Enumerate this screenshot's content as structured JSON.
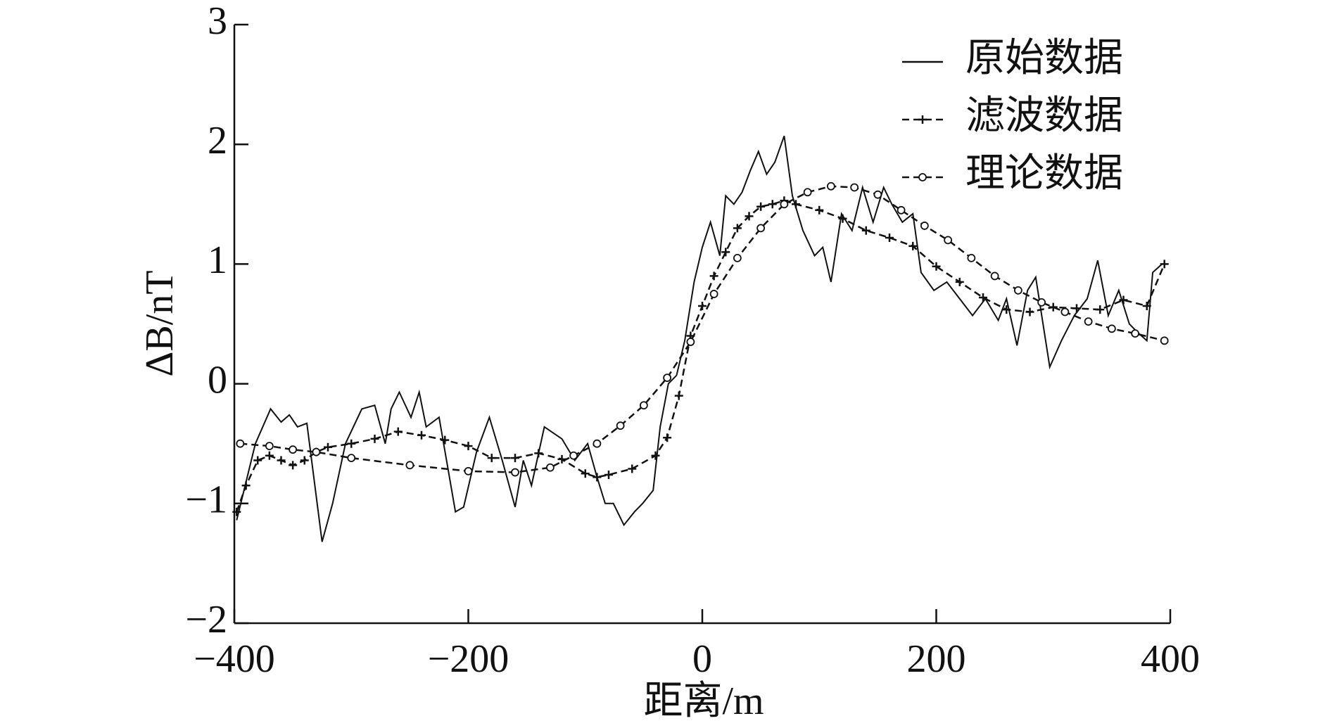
{
  "chart_data": {
    "type": "line",
    "xlabel": "距离/m",
    "ylabel": "ΔB/nT",
    "xlim": [
      -400,
      400
    ],
    "ylim": [
      -2,
      3
    ],
    "xticks": [
      {
        "value": -400,
        "label": "−400"
      },
      {
        "value": -200,
        "label": "−200"
      },
      0,
      200,
      400
    ],
    "yticks": [
      {
        "value": -2,
        "label": "−2"
      },
      {
        "value": -1,
        "label": "−1"
      },
      0,
      1,
      2,
      3
    ],
    "legend": "upper right",
    "series": [
      {
        "name": "原始数据",
        "color": "#111111",
        "style": "solid",
        "marker": "none",
        "x": [
          -398,
          -382,
          -369,
          -360,
          -353,
          -346,
          -338,
          -325,
          -316,
          -305,
          -291,
          -280,
          -271,
          -266,
          -259,
          -249,
          -242,
          -236,
          -225,
          -211,
          -204,
          -193,
          -182,
          -171,
          -160,
          -153,
          -146,
          -135,
          -120,
          -109,
          -98,
          -90,
          -83,
          -76,
          -67,
          -58,
          -51,
          -42,
          -36,
          -29,
          -22,
          -15,
          -7,
          0,
          7,
          15,
          20,
          27,
          34,
          41,
          48,
          55,
          62,
          70,
          77,
          86,
          96,
          103,
          110,
          119,
          128,
          137,
          146,
          155,
          162,
          171,
          180,
          187,
          198,
          209,
          220,
          231,
          242,
          253,
          260,
          269,
          278,
          285,
          297,
          307,
          318,
          329,
          338,
          347,
          356,
          365,
          372,
          380,
          385,
          393
        ],
        "values": [
          -1.14,
          -0.5,
          -0.21,
          -0.32,
          -0.26,
          -0.36,
          -0.33,
          -1.32,
          -1.0,
          -0.5,
          -0.21,
          -0.18,
          -0.5,
          -0.21,
          -0.07,
          -0.28,
          -0.07,
          -0.36,
          -0.28,
          -1.07,
          -1.03,
          -0.57,
          -0.28,
          -0.64,
          -1.03,
          -0.64,
          -0.85,
          -0.36,
          -0.46,
          -0.64,
          -0.5,
          -0.78,
          -1.0,
          -1.0,
          -1.18,
          -1.07,
          -1.0,
          -0.89,
          -0.36,
          0,
          0.07,
          0.36,
          0.85,
          1.14,
          1.35,
          1.07,
          1.57,
          1.5,
          1.6,
          1.78,
          1.94,
          1.75,
          1.85,
          2.07,
          1.57,
          1.28,
          1.07,
          1.14,
          0.85,
          1.42,
          1.28,
          1.64,
          1.35,
          1.64,
          1.5,
          1.35,
          1.42,
          0.93,
          0.78,
          0.85,
          0.71,
          0.57,
          0.71,
          0.53,
          0.71,
          0.32,
          0.78,
          0.89,
          0.14,
          0.36,
          0.57,
          0.71,
          1.03,
          0.57,
          0.78,
          0.5,
          0.43,
          0.36,
          0.93,
          1.0
        ]
      },
      {
        "name": "滤波数据",
        "color": "#111111",
        "style": "dashed",
        "marker": "plus",
        "x": [
          -398,
          -390,
          -380,
          -370,
          -360,
          -350,
          -340,
          -330,
          -320,
          -300,
          -280,
          -260,
          -240,
          -220,
          -200,
          -180,
          -160,
          -140,
          -120,
          -100,
          -90,
          -80,
          -60,
          -40,
          -30,
          -20,
          -10,
          0,
          10,
          20,
          30,
          40,
          50,
          60,
          70,
          80,
          100,
          120,
          140,
          160,
          180,
          200,
          220,
          240,
          260,
          280,
          300,
          320,
          340,
          360,
          380,
          395
        ],
        "values": [
          -1.07,
          -0.85,
          -0.64,
          -0.6,
          -0.64,
          -0.68,
          -0.64,
          -0.57,
          -0.53,
          -0.5,
          -0.46,
          -0.4,
          -0.43,
          -0.47,
          -0.52,
          -0.62,
          -0.62,
          -0.58,
          -0.63,
          -0.75,
          -0.78,
          -0.76,
          -0.71,
          -0.6,
          -0.45,
          -0.1,
          0.4,
          0.65,
          0.9,
          1.1,
          1.3,
          1.4,
          1.48,
          1.5,
          1.53,
          1.5,
          1.45,
          1.38,
          1.28,
          1.22,
          1.15,
          0.98,
          0.85,
          0.72,
          0.62,
          0.6,
          0.64,
          0.63,
          0.62,
          0.7,
          0.65,
          1.0
        ]
      },
      {
        "name": "理论数据",
        "color": "#111111",
        "style": "dashed",
        "marker": "circle",
        "x": [
          -395,
          -370,
          -350,
          -330,
          -300,
          -250,
          -200,
          -160,
          -130,
          -110,
          -90,
          -70,
          -50,
          -30,
          -10,
          10,
          30,
          50,
          70,
          90,
          110,
          130,
          150,
          170,
          190,
          210,
          230,
          250,
          270,
          290,
          310,
          330,
          350,
          370,
          395
        ],
        "values": [
          -0.5,
          -0.52,
          -0.55,
          -0.57,
          -0.62,
          -0.68,
          -0.73,
          -0.74,
          -0.7,
          -0.6,
          -0.5,
          -0.35,
          -0.18,
          0.05,
          0.35,
          0.75,
          1.05,
          1.3,
          1.5,
          1.6,
          1.65,
          1.64,
          1.58,
          1.45,
          1.32,
          1.2,
          1.05,
          0.9,
          0.78,
          0.68,
          0.6,
          0.52,
          0.46,
          0.42,
          0.36
        ]
      }
    ]
  }
}
